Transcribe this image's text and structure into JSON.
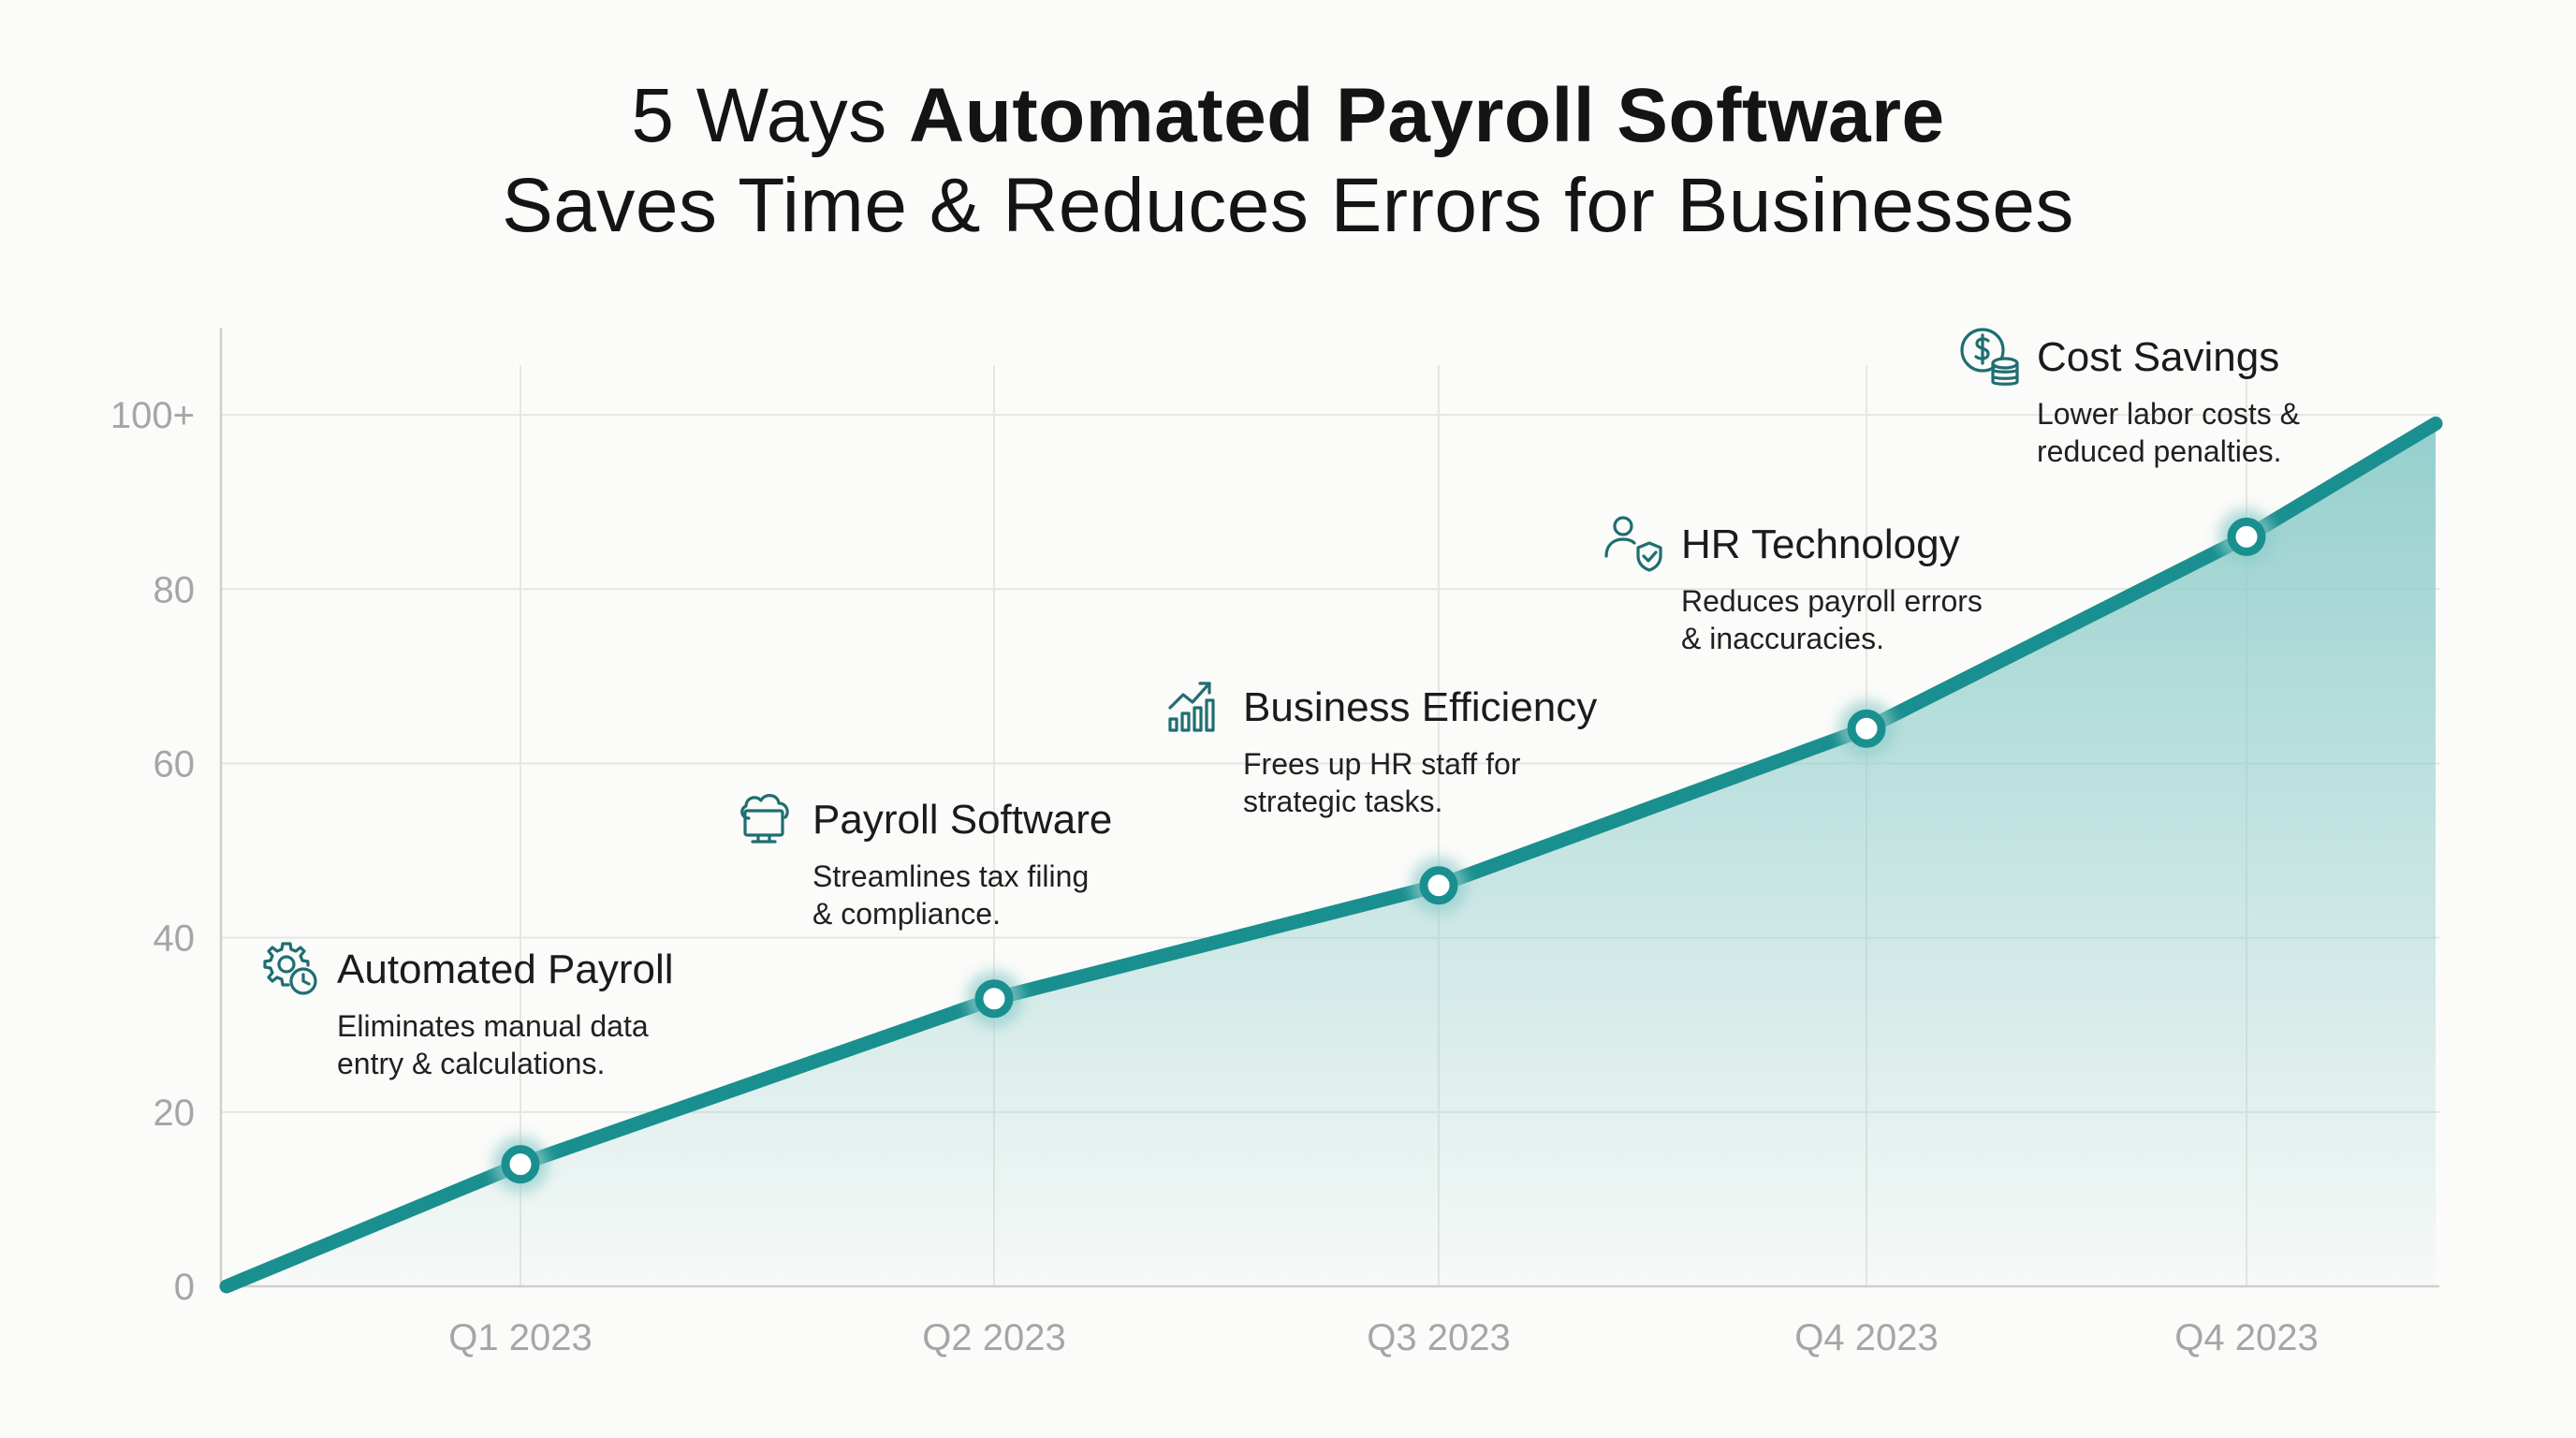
{
  "title": {
    "line1_prefix": "5 Ways ",
    "line1_bold": "Automated Payroll Software",
    "line2": "Saves Time & Reduces Errors for Businesses"
  },
  "colors": {
    "line": "#1a8f8f",
    "area_top": "#8fcdcb",
    "grid": "#e6e6e3",
    "tick_text": "#a6a6a6",
    "icon": "#1f6e72",
    "marker_fill": "#ffffff"
  },
  "chart_data": {
    "type": "area",
    "title": "5 Ways Automated Payroll Software Saves Time & Reduces Errors for Businesses",
    "xlabel": "",
    "ylabel": "",
    "categories": [
      "Q1 2023",
      "Q2 2023",
      "Q3 2023",
      "Q4 2023",
      "Q4 2023"
    ],
    "ylim": [
      0,
      110
    ],
    "y_ticks": [
      "0",
      "20",
      "40",
      "60",
      "80",
      "100+"
    ],
    "grid": true,
    "series": [
      {
        "start": {
          "x": 0,
          "y": 0
        },
        "points": [
          {
            "x": "Q1 2023",
            "y": 14
          },
          {
            "x": "Q2 2023",
            "y": 33
          },
          {
            "x": "Q3 2023",
            "y": 46
          },
          {
            "x": "Q4 2023",
            "y": 64
          },
          {
            "x": "Q4 2023",
            "y": 86
          }
        ],
        "end": {
          "y": 99
        }
      }
    ],
    "annotations": [
      {
        "icon": "gear-clock-icon",
        "heading": "Automated Payroll",
        "desc": [
          "Eliminates manual data",
          "entry & calculations."
        ]
      },
      {
        "icon": "cloud-monitor-icon",
        "heading": "Payroll Software",
        "desc": [
          "Streamlines tax filing",
          "& compliance."
        ]
      },
      {
        "icon": "growth-chart-icon",
        "heading": "Business Efficiency",
        "desc": [
          "Frees up HR staff for",
          "strategic tasks."
        ]
      },
      {
        "icon": "user-shield-icon",
        "heading": "HR Technology",
        "desc": [
          "Reduces payroll errors",
          "& inaccuracies."
        ]
      },
      {
        "icon": "dollar-coins-icon",
        "heading": "Cost Savings",
        "desc": [
          "Lower labor costs &",
          "reduced penalties."
        ]
      }
    ]
  }
}
